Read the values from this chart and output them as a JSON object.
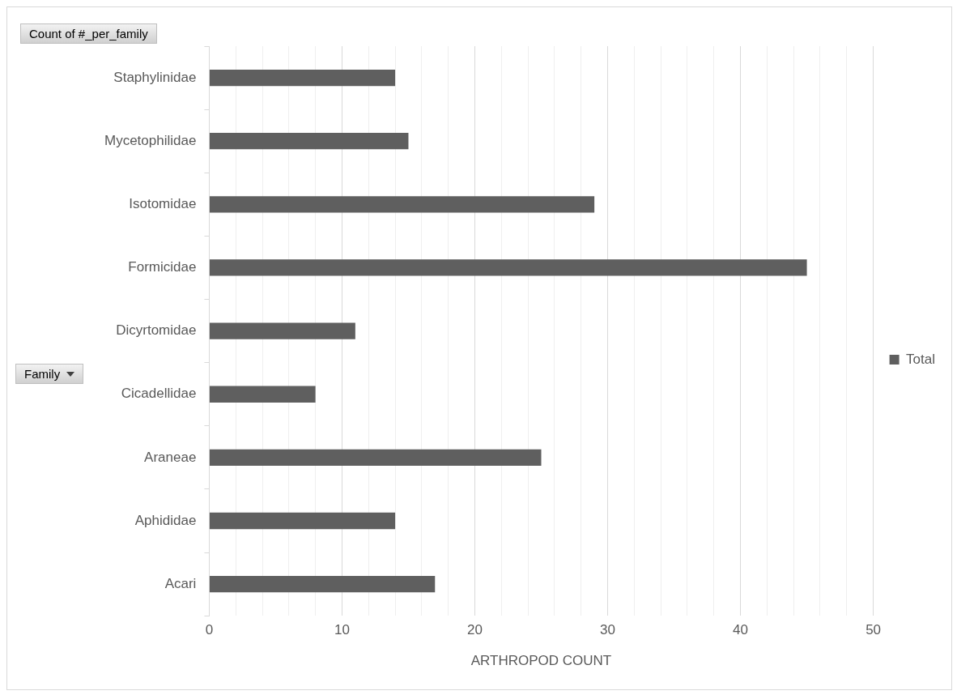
{
  "chart_data": {
    "type": "bar",
    "orientation": "horizontal",
    "title": "Count of #_per_family",
    "ylabel": "Family",
    "xlabel": "ARTHROPOD COUNT",
    "categories": [
      "Staphylinidae",
      "Mycetophilidae",
      "Isotomidae",
      "Formicidae",
      "Dicyrtomidae",
      "Cicadellidae",
      "Araneae",
      "Aphididae",
      "Acari"
    ],
    "series": [
      {
        "name": "Total",
        "color": "#5f5f5f",
        "values": [
          14,
          15,
          29,
          45,
          11,
          8,
          25,
          14,
          17
        ]
      }
    ],
    "xlim": [
      0,
      50
    ],
    "xticks": [
      0,
      {
        "value": 2,
        "label": null
      },
      {
        "value": 4,
        "label": null
      },
      {
        "value": 6,
        "label": null
      },
      {
        "value": 8,
        "label": null
      },
      10,
      {
        "value": 12,
        "label": null
      },
      {
        "value": 14,
        "label": null
      },
      {
        "value": 16,
        "label": null
      },
      {
        "value": 18,
        "label": null
      },
      20,
      {
        "value": 22,
        "label": null
      },
      {
        "value": 24,
        "label": null
      },
      {
        "value": 26,
        "label": null
      },
      {
        "value": 28,
        "label": null
      },
      30,
      {
        "value": 32,
        "label": null
      },
      {
        "value": 34,
        "label": null
      },
      {
        "value": 36,
        "label": null
      },
      {
        "value": 38,
        "label": null
      },
      40,
      {
        "value": 42,
        "label": null
      },
      {
        "value": 44,
        "label": null
      },
      {
        "value": 46,
        "label": null
      },
      {
        "value": 48,
        "label": null
      },
      50
    ],
    "grid": "x",
    "legend": "right"
  }
}
